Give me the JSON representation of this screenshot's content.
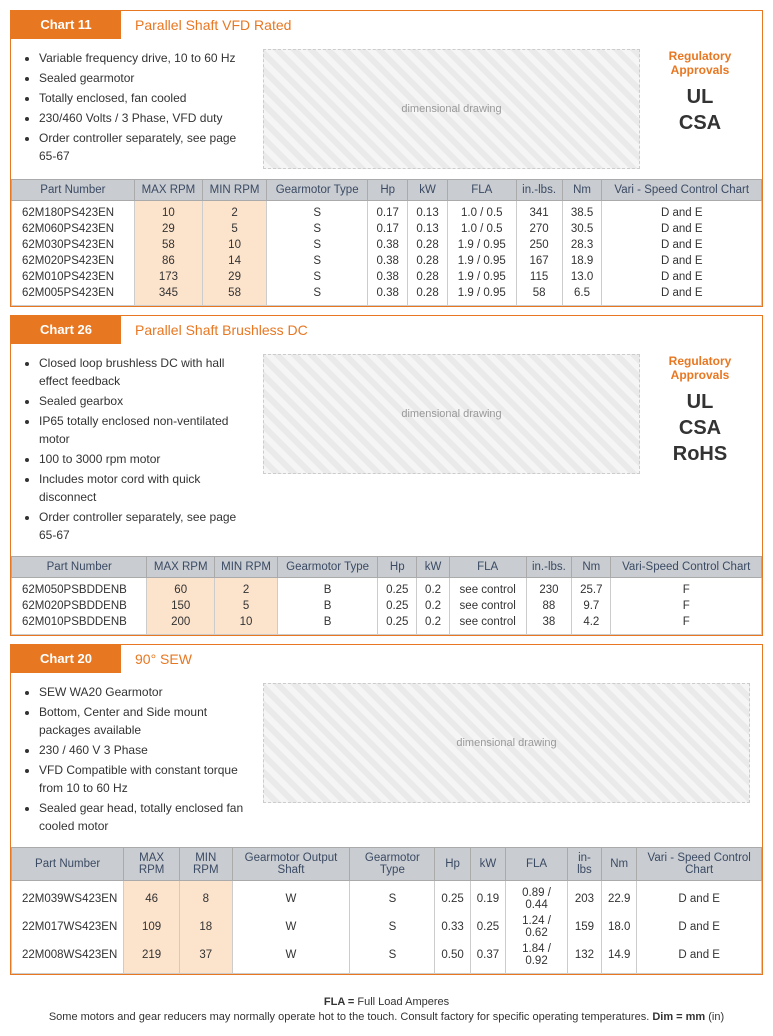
{
  "colors": {
    "accent": "#e87722",
    "header_bg": "#c9cdd2",
    "highlight_bg": "#fce3cc",
    "border": "#cccccc",
    "text": "#333333",
    "header_text": "#3b4a63"
  },
  "charts": [
    {
      "tab": "Chart 11",
      "title": "Parallel Shaft VFD Rated",
      "bullets": [
        "Variable frequency drive, 10 to 60 Hz",
        "Sealed gearmotor",
        "Totally enclosed, fan cooled",
        "230/460 Volts / 3 Phase, VFD duty",
        "Order controller separately, see page 65-67"
      ],
      "approvals_label": "Regulatory Approvals",
      "approvals_logos": [
        "UL",
        "CSA"
      ],
      "diagram_label": "dimensional drawing",
      "columns": [
        "Part Number",
        "MAX RPM",
        "MIN RPM",
        "Gearmotor Type",
        "Hp",
        "kW",
        "FLA",
        "in.-lbs.",
        "Nm",
        "Vari - Speed Control Chart"
      ],
      "highlight_cols": [
        1,
        2
      ],
      "rows": [
        [
          "62M180PS423EN",
          "10",
          "2",
          "S",
          "0.17",
          "0.13",
          "1.0 / 0.5",
          "341",
          "38.5",
          "D and E"
        ],
        [
          "62M060PS423EN",
          "29",
          "5",
          "S",
          "0.17",
          "0.13",
          "1.0 / 0.5",
          "270",
          "30.5",
          "D and E"
        ],
        [
          "62M030PS423EN",
          "58",
          "10",
          "S",
          "0.38",
          "0.28",
          "1.9 / 0.95",
          "250",
          "28.3",
          "D and E"
        ],
        [
          "62M020PS423EN",
          "86",
          "14",
          "S",
          "0.38",
          "0.28",
          "1.9 / 0.95",
          "167",
          "18.9",
          "D and E"
        ],
        [
          "62M010PS423EN",
          "173",
          "29",
          "S",
          "0.38",
          "0.28",
          "1.9 / 0.95",
          "115",
          "13.0",
          "D and E"
        ],
        [
          "62M005PS423EN",
          "345",
          "58",
          "S",
          "0.38",
          "0.28",
          "1.9 / 0.95",
          "58",
          "6.5",
          "D and E"
        ]
      ]
    },
    {
      "tab": "Chart 26",
      "title": "Parallel Shaft Brushless DC",
      "bullets": [
        "Closed loop brushless DC with hall effect feedback",
        "Sealed gearbox",
        "IP65 totally enclosed non-ventilated motor",
        "100 to 3000 rpm motor",
        "Includes motor cord with quick disconnect",
        "Order controller separately, see page 65-67"
      ],
      "approvals_label": "Regulatory Approvals",
      "approvals_logos": [
        "UL",
        "CSA",
        "RoHS"
      ],
      "diagram_label": "dimensional drawing",
      "columns": [
        "Part Number",
        "MAX RPM",
        "MIN RPM",
        "Gearmotor Type",
        "Hp",
        "kW",
        "FLA",
        "in.-lbs.",
        "Nm",
        "Vari-Speed Control Chart"
      ],
      "highlight_cols": [
        1,
        2
      ],
      "rows": [
        [
          "62M050PSBDDENB",
          "60",
          "2",
          "B",
          "0.25",
          "0.2",
          "see control",
          "230",
          "25.7",
          "F"
        ],
        [
          "62M020PSBDDENB",
          "150",
          "5",
          "B",
          "0.25",
          "0.2",
          "see control",
          "88",
          "9.7",
          "F"
        ],
        [
          "62M010PSBDDENB",
          "200",
          "10",
          "B",
          "0.25",
          "0.2",
          "see control",
          "38",
          "4.2",
          "F"
        ]
      ]
    },
    {
      "tab": "Chart 20",
      "title": "90° SEW",
      "bullets": [
        "SEW WA20 Gearmotor",
        "Bottom, Center and Side mount packages available",
        "230 / 460 V 3 Phase",
        "VFD Compatible with constant torque from 10 to 60 Hz",
        "Sealed gear head, totally enclosed fan cooled motor"
      ],
      "approvals_label": "",
      "approvals_logos": [],
      "diagram_label": "dimensional drawing",
      "columns": [
        "Part Number",
        "MAX RPM",
        "MIN RPM",
        "Gearmotor Output Shaft",
        "Gearmotor Type",
        "Hp",
        "kW",
        "FLA",
        "in-lbs",
        "Nm",
        "Vari - Speed Control Chart"
      ],
      "highlight_cols": [
        1,
        2
      ],
      "rows": [
        [
          "22M039WS423EN",
          "46",
          "8",
          "W",
          "S",
          "0.25",
          "0.19",
          "0.89 / 0.44",
          "203",
          "22.9",
          "D and E"
        ],
        [
          "22M017WS423EN",
          "109",
          "18",
          "W",
          "S",
          "0.33",
          "0.25",
          "1.24 / 0.62",
          "159",
          "18.0",
          "D and E"
        ],
        [
          "22M008WS423EN",
          "219",
          "37",
          "W",
          "S",
          "0.50",
          "0.37",
          "1.84 / 0.92",
          "132",
          "14.9",
          "D and E"
        ]
      ]
    }
  ],
  "footer": {
    "line1_label": "FLA =",
    "line1_text": "Full Load Amperes",
    "line2_a": "Some motors and gear reducers may normally operate hot to the touch.  Consult factory for specific operating temperatures.  ",
    "line2_b_label": "Dim = mm",
    "line2_b_text": " (in)"
  }
}
